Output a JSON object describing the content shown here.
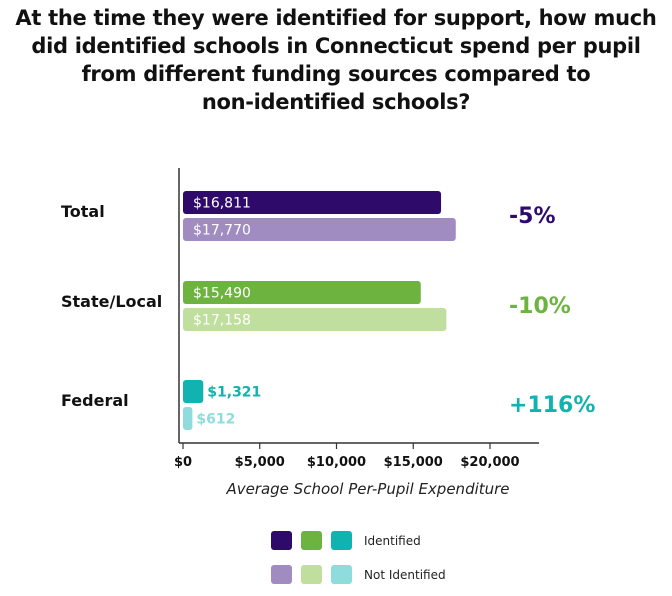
{
  "title_lines": [
    "At the time they were identified for support, how much",
    "did identified schools in Connecticut spend per pupil",
    "from different funding sources compared to",
    "non-identified schools?"
  ],
  "chart_data": {
    "type": "bar",
    "orientation": "horizontal",
    "title": "At the time they were identified for support, how much did identified schools in Connecticut spend per pupil from different funding sources compared to non-identified schools?",
    "categories": [
      "Total",
      "State/Local",
      "Federal"
    ],
    "series": [
      {
        "name": "Identified",
        "values": [
          16811,
          15490,
          1321
        ],
        "labels": [
          "$16,811",
          "$15,490",
          "$1,321"
        ],
        "colors": [
          "#2e0a6b",
          "#6db33f",
          "#11b3b0"
        ]
      },
      {
        "name": "Not Identified",
        "values": [
          17770,
          17158,
          612
        ],
        "labels": [
          "$17,770",
          "$17,158",
          "$612"
        ],
        "colors": [
          "#a18cc2",
          "#c0df9e",
          "#8fdcdc"
        ]
      }
    ],
    "differences": [
      {
        "label": "-5%",
        "color": "#2e0a6b"
      },
      {
        "label": "-10%",
        "color": "#6db33f"
      },
      {
        "label": "+116%",
        "color": "#11b3b0"
      }
    ],
    "xlabel": "Average School Per-Pupil Expenditure",
    "xlim": [
      0,
      23000
    ],
    "xticks": [
      0,
      5000,
      10000,
      15000,
      20000
    ],
    "xtick_labels": [
      "$0",
      "$5,000",
      "$10,000",
      "$15,000",
      "$20,000"
    ],
    "grid": false,
    "legend_position": "bottom",
    "legend": {
      "identified_label": "Identified",
      "not_identified_label": "Not Identified",
      "identified_colors": [
        "#2e0a6b",
        "#6db33f",
        "#11b3b0"
      ],
      "not_identified_colors": [
        "#a18cc2",
        "#c0df9e",
        "#8fdcdc"
      ]
    }
  }
}
